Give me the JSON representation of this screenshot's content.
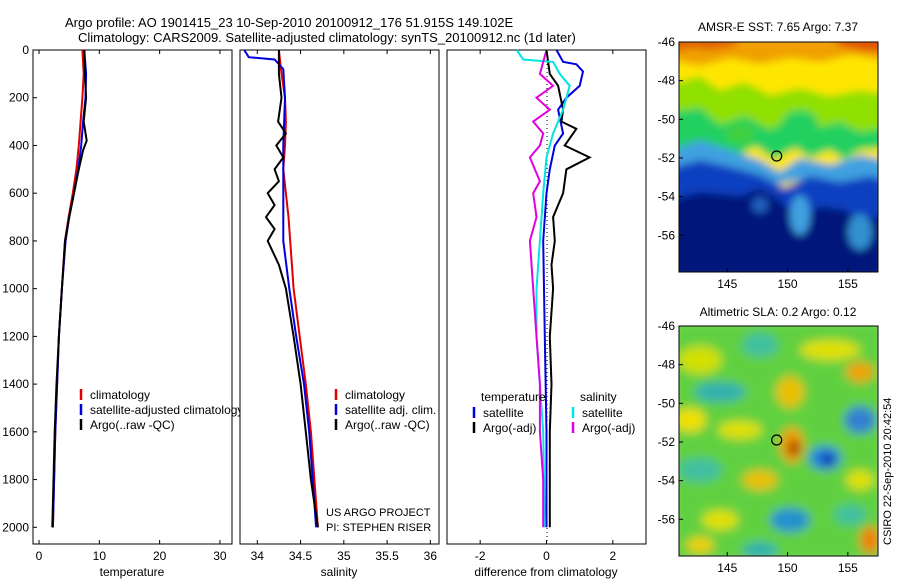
{
  "title_line1": "Argo profile: AO 1901415_23 10-Sep-2010 20100912_176 51.915S 149.102E",
  "title_line2": "Climatology: CARS2009. Satellite-adjusted climatology: synTS_20100912.nc (1d later)",
  "side_text": "CSIRO 22-Sep-2010 20:42:54",
  "chart_data": [
    {
      "id": "temperature",
      "type": "line",
      "xlabel": "temperature",
      "xlim": [
        -1,
        32
      ],
      "ylim": [
        2070,
        0
      ],
      "xticks": [
        0,
        10,
        20,
        30
      ],
      "yticks": [
        0,
        200,
        400,
        600,
        800,
        1000,
        1200,
        1400,
        1600,
        1800,
        2000
      ],
      "legend": [
        {
          "label": "climatology",
          "color": "#e00000"
        },
        {
          "label": "satellite-adjusted climatology",
          "color": "#0000dd"
        },
        {
          "label": "Argo(..raw -QC)",
          "color": "#000000"
        }
      ],
      "series": [
        {
          "name": "climatology",
          "color": "#e00000",
          "points": [
            [
              7.2,
              0
            ],
            [
              7.4,
              100
            ],
            [
              7.2,
              200
            ],
            [
              6.9,
              300
            ],
            [
              6.6,
              400
            ],
            [
              6.2,
              500
            ],
            [
              5.6,
              600
            ],
            [
              4.9,
              700
            ],
            [
              4.3,
              800
            ],
            [
              3.8,
              1000
            ],
            [
              3.3,
              1200
            ],
            [
              3.0,
              1400
            ],
            [
              2.7,
              1600
            ],
            [
              2.5,
              1800
            ],
            [
              2.3,
              2000
            ]
          ]
        },
        {
          "name": "satellite-adjusted climatology",
          "color": "#0000dd",
          "points": [
            [
              7.5,
              0
            ],
            [
              7.8,
              100
            ],
            [
              7.7,
              200
            ],
            [
              7.3,
              300
            ],
            [
              7.0,
              400
            ],
            [
              6.5,
              500
            ],
            [
              5.8,
              600
            ],
            [
              5.0,
              700
            ],
            [
              4.4,
              800
            ],
            [
              3.8,
              1000
            ],
            [
              3.3,
              1200
            ],
            [
              3.0,
              1400
            ],
            [
              2.7,
              1600
            ],
            [
              2.5,
              1800
            ],
            [
              2.3,
              2000
            ]
          ]
        },
        {
          "name": "Argo(..raw -QC)",
          "color": "#000000",
          "points": [
            [
              7.5,
              0
            ],
            [
              7.6,
              100
            ],
            [
              7.8,
              200
            ],
            [
              7.4,
              300
            ],
            [
              7.9,
              380
            ],
            [
              7.3,
              420
            ],
            [
              6.6,
              500
            ],
            [
              5.8,
              600
            ],
            [
              5.0,
              700
            ],
            [
              4.3,
              800
            ],
            [
              3.8,
              1000
            ],
            [
              3.3,
              1200
            ],
            [
              2.9,
              1400
            ],
            [
              2.6,
              1600
            ],
            [
              2.4,
              1800
            ],
            [
              2.2,
              2000
            ]
          ]
        }
      ]
    },
    {
      "id": "salinity",
      "type": "line",
      "xlabel": "salinity",
      "xlim": [
        33.8,
        36.1
      ],
      "ylim": [
        2070,
        0
      ],
      "xticks": [
        34,
        34.5,
        35,
        35.5,
        36
      ],
      "legend": [
        {
          "label": "climatology",
          "color": "#e00000"
        },
        {
          "label": "satellite adj. clim.",
          "color": "#0000dd"
        },
        {
          "label": "Argo(..raw -QC)",
          "color": "#000000"
        }
      ],
      "annotation": [
        "US ARGO PROJECT",
        "PI: STEPHEN RISER"
      ],
      "series": [
        {
          "name": "climatology",
          "color": "#e00000",
          "points": [
            [
              34.25,
              0
            ],
            [
              34.28,
              100
            ],
            [
              34.32,
              200
            ],
            [
              34.33,
              300
            ],
            [
              34.32,
              400
            ],
            [
              34.3,
              500
            ],
            [
              34.33,
              600
            ],
            [
              34.36,
              700
            ],
            [
              34.38,
              800
            ],
            [
              34.42,
              1000
            ],
            [
              34.49,
              1200
            ],
            [
              34.56,
              1400
            ],
            [
              34.62,
              1600
            ],
            [
              34.66,
              1800
            ],
            [
              34.7,
              2000
            ]
          ]
        },
        {
          "name": "satellite adj. clim.",
          "color": "#0000dd",
          "points": [
            [
              33.85,
              0
            ],
            [
              33.9,
              30
            ],
            [
              34.2,
              40
            ],
            [
              34.3,
              80
            ],
            [
              34.32,
              200
            ],
            [
              34.3,
              400
            ],
            [
              34.3,
              600
            ],
            [
              34.3,
              800
            ],
            [
              34.37,
              1000
            ],
            [
              34.45,
              1200
            ],
            [
              34.54,
              1400
            ],
            [
              34.6,
              1600
            ],
            [
              34.64,
              1800
            ],
            [
              34.68,
              2000
            ]
          ]
        },
        {
          "name": "Argo(..raw -QC)",
          "color": "#000000",
          "points": [
            [
              34.25,
              0
            ],
            [
              34.25,
              100
            ],
            [
              34.28,
              200
            ],
            [
              34.24,
              300
            ],
            [
              34.33,
              350
            ],
            [
              34.22,
              400
            ],
            [
              34.3,
              450
            ],
            [
              34.2,
              500
            ],
            [
              34.25,
              550
            ],
            [
              34.12,
              600
            ],
            [
              34.2,
              650
            ],
            [
              34.1,
              700
            ],
            [
              34.2,
              750
            ],
            [
              34.12,
              800
            ],
            [
              34.25,
              900
            ],
            [
              34.33,
              1000
            ],
            [
              34.42,
              1200
            ],
            [
              34.5,
              1400
            ],
            [
              34.56,
              1600
            ],
            [
              34.62,
              1800
            ],
            [
              34.7,
              2000
            ]
          ]
        }
      ]
    },
    {
      "id": "difference",
      "type": "line",
      "xlabel": "difference from climatology",
      "xlim": [
        -3,
        3
      ],
      "ylim": [
        2070,
        0
      ],
      "xticks": [
        -2,
        0,
        2
      ],
      "legend_headers": [
        "temperature",
        "salinity"
      ],
      "legend": [
        {
          "label": "satellite",
          "color": "#0000dd"
        },
        {
          "label": "Argo(-adj)",
          "color": "#000000"
        },
        {
          "label": "satellite",
          "color": "#00e5e5"
        },
        {
          "label": "Argo(-adj)",
          "color": "#e000e0"
        }
      ],
      "series": [
        {
          "name": "temperature satellite",
          "color": "#0000dd",
          "points": [
            [
              0.3,
              0
            ],
            [
              0.5,
              50
            ],
            [
              0.9,
              60
            ],
            [
              1.1,
              90
            ],
            [
              1.0,
              150
            ],
            [
              0.6,
              200
            ],
            [
              0.35,
              250
            ],
            [
              0.5,
              350
            ],
            [
              0.25,
              400
            ],
            [
              0.1,
              500
            ],
            [
              0.0,
              600
            ],
            [
              -0.1,
              800
            ],
            [
              -0.05,
              1200
            ],
            [
              0.0,
              1600
            ],
            [
              0.0,
              2000
            ]
          ]
        },
        {
          "name": "temperature Argo(-adj)",
          "color": "#000000",
          "points": [
            [
              0.0,
              0
            ],
            [
              0.1,
              100
            ],
            [
              0.35,
              150
            ],
            [
              0.5,
              250
            ],
            [
              0.45,
              300
            ],
            [
              0.9,
              330
            ],
            [
              0.55,
              400
            ],
            [
              1.3,
              450
            ],
            [
              0.6,
              500
            ],
            [
              0.5,
              600
            ],
            [
              0.35,
              650
            ],
            [
              0.2,
              700
            ],
            [
              0.25,
              800
            ],
            [
              0.15,
              900
            ],
            [
              0.2,
              1000
            ],
            [
              0.1,
              1200
            ],
            [
              0.15,
              1400
            ],
            [
              0.1,
              1600
            ],
            [
              0.1,
              1800
            ],
            [
              0.1,
              2000
            ]
          ]
        },
        {
          "name": "salinity satellite",
          "color": "#00e5e5",
          "points": [
            [
              -0.9,
              0
            ],
            [
              -0.7,
              40
            ],
            [
              0.2,
              50
            ],
            [
              0.4,
              100
            ],
            [
              0.7,
              150
            ],
            [
              0.5,
              250
            ],
            [
              0.2,
              350
            ],
            [
              0.0,
              450
            ],
            [
              -0.1,
              600
            ],
            [
              -0.2,
              800
            ],
            [
              -0.3,
              1000
            ],
            [
              -0.3,
              1200
            ],
            [
              -0.2,
              1400
            ],
            [
              -0.1,
              1600
            ],
            [
              -0.05,
              2000
            ]
          ]
        },
        {
          "name": "salinity Argo(-adj)",
          "color": "#e000e0",
          "points": [
            [
              0.0,
              0
            ],
            [
              -0.2,
              100
            ],
            [
              0.2,
              150
            ],
            [
              -0.3,
              200
            ],
            [
              0.1,
              250
            ],
            [
              -0.4,
              300
            ],
            [
              -0.1,
              350
            ],
            [
              -0.2,
              400
            ],
            [
              -0.5,
              450
            ],
            [
              -0.2,
              550
            ],
            [
              -0.4,
              600
            ],
            [
              -0.3,
              700
            ],
            [
              -0.5,
              800
            ],
            [
              -0.4,
              1000
            ],
            [
              -0.3,
              1200
            ],
            [
              -0.2,
              1400
            ],
            [
              -0.2,
              1600
            ],
            [
              -0.1,
              1800
            ],
            [
              -0.1,
              2000
            ]
          ]
        }
      ]
    },
    {
      "id": "sst-map",
      "type": "heatmap",
      "title": "AMSR-E SST: 7.65  Argo: 7.37",
      "xticks": [
        145,
        150,
        155
      ],
      "yticks": [
        -46,
        -48,
        -50,
        -52,
        -54,
        -56
      ],
      "xlim": [
        141,
        157.5
      ],
      "ylim": [
        -57.9,
        -46
      ],
      "marker": {
        "lon": 149.1,
        "lat": -51.9
      }
    },
    {
      "id": "sla-map",
      "type": "heatmap",
      "title": "Altimetric SLA: 0.2  Argo: 0.12",
      "xticks": [
        145,
        150,
        155
      ],
      "yticks": [
        -46,
        -48,
        -50,
        -52,
        -54,
        -56
      ],
      "xlim": [
        141,
        157.5
      ],
      "ylim": [
        -57.9,
        -46
      ],
      "marker": {
        "lon": 149.1,
        "lat": -51.9
      }
    }
  ]
}
